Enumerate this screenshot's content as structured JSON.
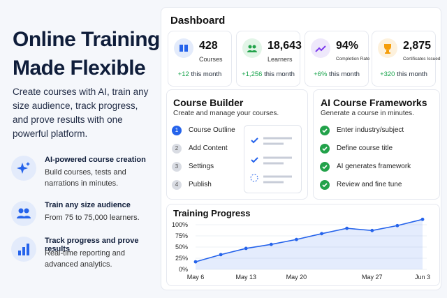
{
  "hero": {
    "title": [
      "Online Training",
      "Made Flexible"
    ],
    "description": "Create courses with AI, train any size audience, track progress, and prove results with one powerful platform.",
    "features": [
      {
        "title": "AI-powered course creation",
        "text": "Build courses, tests and narrations in minutes."
      },
      {
        "title": "Train any size audience",
        "text": "From 75 to 75,000 learners."
      },
      {
        "title": "Track progress and prove results",
        "text": "Real-time reporting and advanced analytics."
      }
    ]
  },
  "dashboard": {
    "title": "Dashboard",
    "stats": [
      {
        "value": "428",
        "label": "Courses",
        "change": "+12",
        "period": "this month"
      },
      {
        "value": "18,643",
        "label": "Learners",
        "change": "+1,256",
        "period": "this month"
      },
      {
        "value": "94%",
        "label": "Completion Rate",
        "change": "+6%",
        "period": "this month"
      },
      {
        "value": "2,875",
        "label": "Certificates Issued",
        "change": "+320",
        "period": "this month"
      }
    ],
    "course_builder": {
      "title": "Course Builder",
      "subtitle": "Create and manage your courses.",
      "steps": [
        {
          "number": "1",
          "label": "Course Outline"
        },
        {
          "number": "2",
          "label": "Add Content"
        },
        {
          "number": "3",
          "label": "Settings"
        },
        {
          "number": "4",
          "label": "Publish"
        }
      ]
    },
    "frameworks": {
      "title": "AI Course Frameworks",
      "subtitle": "Generate a course in minutes.",
      "items": [
        "Enter industry/subject",
        "Define course title",
        "AI generates framework",
        "Review and fine tune"
      ]
    }
  },
  "chart_data": {
    "type": "line",
    "title": "Training Progress",
    "categories": [
      "May 6",
      null,
      "May 13",
      null,
      "May 20",
      null,
      null,
      "May 27",
      null,
      "Jun 3"
    ],
    "values": [
      17,
      33,
      47,
      56,
      67,
      80,
      92,
      87,
      98,
      112
    ],
    "color": "#2563eb",
    "area": true,
    "ylim": [
      0,
      115
    ],
    "yticks": [
      {
        "value": 0,
        "label": "0%"
      },
      {
        "value": 25,
        "label": "25%"
      },
      {
        "value": 50,
        "label": "50%"
      },
      {
        "value": 75,
        "label": "75%"
      },
      {
        "value": 100,
        "label": "100%"
      }
    ]
  }
}
